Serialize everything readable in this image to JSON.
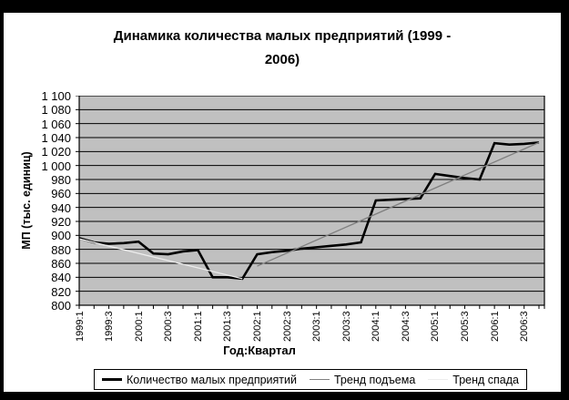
{
  "chart_data": {
    "type": "line",
    "title": "Динамика количества малых предприятий (1999 - 2006)",
    "xlabel": "Год:Квартал",
    "ylabel": "МП (тыс. единиц)",
    "ylim": [
      800,
      1100
    ],
    "y_tick_step": 20,
    "grid": true,
    "plot_bg": "#c0c0c0",
    "grid_color": "#000000",
    "y_tick_labels": [
      "1 100",
      "1 080",
      "1 060",
      "1 040",
      "1 020",
      "1 000",
      "980",
      "960",
      "940",
      "920",
      "900",
      "880",
      "860",
      "840",
      "820",
      "800"
    ],
    "categories": [
      "1999:1",
      "1999:2",
      "1999:3",
      "1999:4",
      "2000:1",
      "2000:2",
      "2000:3",
      "2000:4",
      "2001:1",
      "2001:2",
      "2001:3",
      "2001:4",
      "2002:1",
      "2002:2",
      "2002:3",
      "2002:4",
      "2003:1",
      "2003:2",
      "2003:3",
      "2003:4",
      "2004:1",
      "2004:2",
      "2004:3",
      "2004:4",
      "2005:1",
      "2005:2",
      "2005:3",
      "2005:4",
      "2006:1",
      "2006:2",
      "2006:3",
      "2006:4"
    ],
    "x_tick_labels_shown": [
      "1999:1",
      "1999:3",
      "2000:1",
      "2000:3",
      "2001:1",
      "2001:3",
      "2002:1",
      "2002:3",
      "2003:1",
      "2003:3",
      "2004:1",
      "2004:3",
      "2005:1",
      "2005:3",
      "2006:1",
      "2006:3"
    ],
    "series": [
      {
        "name": "Количество малых предприятий",
        "color": "#000000",
        "line_width": 2.6,
        "values": [
          896,
          890,
          888,
          889,
          891,
          874,
          873,
          877,
          879,
          840,
          840,
          838,
          873,
          876,
          878,
          881,
          883,
          885,
          887,
          890,
          950,
          951,
          952,
          953,
          988,
          985,
          982,
          980,
          1032,
          1030,
          1031,
          1033
        ]
      }
    ],
    "trend_lines": [
      {
        "name": "Тренд спада",
        "color": "#ededed",
        "line_width": 1.3,
        "start_category": "1999:1",
        "end_category": "2001:4",
        "start_index": 0,
        "end_index": 11,
        "start_value": 895,
        "end_value": 838
      },
      {
        "name": "Тренд подъема",
        "color": "#7f7f7f",
        "line_width": 1.3,
        "start_category": "2002:1",
        "end_category": "2006:4",
        "start_index": 12,
        "end_index": 31,
        "start_value": 856,
        "end_value": 1033
      }
    ]
  },
  "legend": {
    "items": [
      {
        "label": "Количество малых предприятий",
        "color": "#000000",
        "line_width": 3
      },
      {
        "label": "Тренд подъема",
        "color": "#7f7f7f",
        "line_width": 1
      },
      {
        "label": "Тренд спада",
        "color": "#ededed",
        "line_width": 1
      }
    ]
  }
}
